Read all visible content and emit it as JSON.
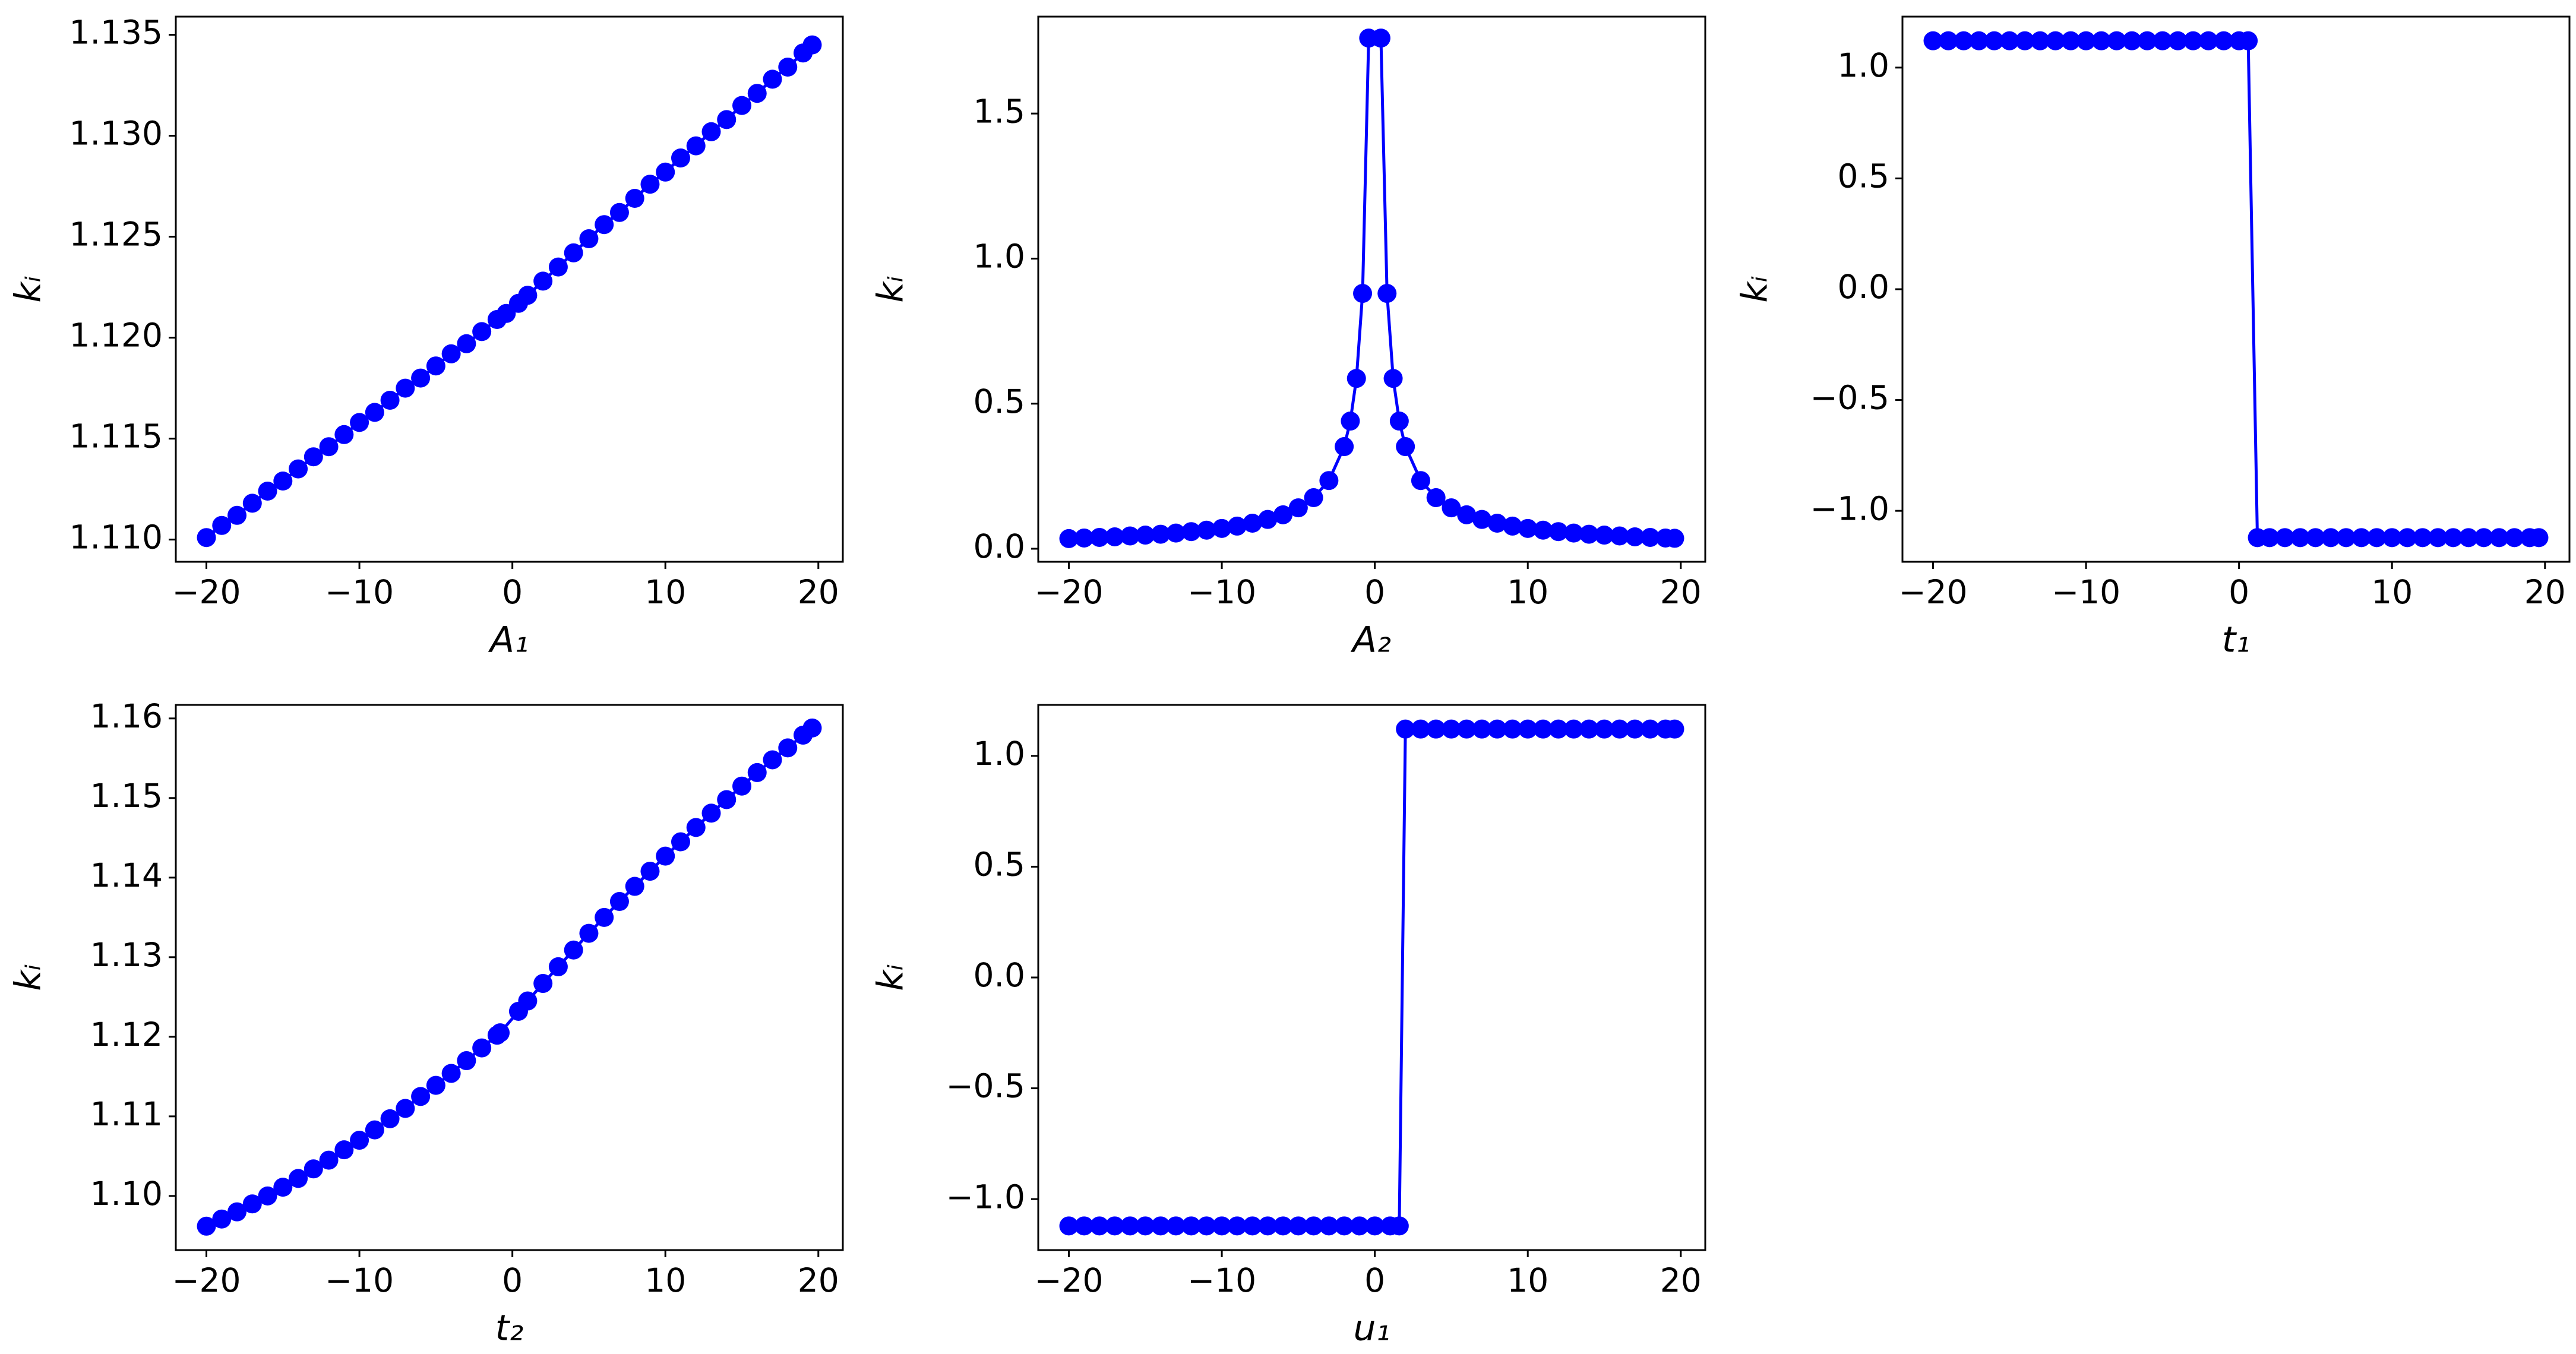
{
  "chart_data": [
    {
      "type": "line",
      "xlabel": "A₁",
      "ylabel": "kᵢ",
      "color": "#0000ff",
      "x": [
        -20,
        -19,
        -18,
        -17,
        -16,
        -15,
        -14,
        -13,
        -12,
        -11,
        -10,
        -9,
        -8,
        -7,
        -6,
        -5,
        -4,
        -3,
        -2,
        -1,
        -0.4,
        0.4,
        1,
        2,
        3,
        4,
        5,
        6,
        7,
        8,
        9,
        10,
        11,
        12,
        13,
        14,
        15,
        16,
        17,
        18,
        19,
        19.6
      ],
      "values": [
        1.1101,
        1.1107,
        1.1112,
        1.1118,
        1.1124,
        1.1129,
        1.1135,
        1.1141,
        1.1146,
        1.1152,
        1.1158,
        1.1163,
        1.1169,
        1.1175,
        1.118,
        1.1186,
        1.1192,
        1.1197,
        1.1203,
        1.1209,
        1.1212,
        1.1217,
        1.1221,
        1.1228,
        1.1235,
        1.1242,
        1.1249,
        1.1256,
        1.1262,
        1.1269,
        1.1276,
        1.1282,
        1.1289,
        1.1295,
        1.1302,
        1.1308,
        1.1315,
        1.1321,
        1.1328,
        1.1334,
        1.1341,
        1.1345
      ],
      "xlim": [
        -22,
        21.6
      ],
      "ylim": [
        1.1089,
        1.1359
      ],
      "xticks": [
        {
          "value": -20,
          "label": "−20"
        },
        {
          "value": -10,
          "label": "−10"
        },
        0,
        10,
        20
      ],
      "yticks": [
        {
          "value": 1.11,
          "label": "1.110"
        },
        1.115,
        {
          "value": 1.12,
          "label": "1.120"
        },
        1.125,
        {
          "value": 1.13,
          "label": "1.130"
        },
        1.135
      ]
    },
    {
      "type": "line",
      "xlabel": "A₂",
      "ylabel": "kᵢ",
      "color": "#0000ff",
      "x": [
        -20,
        -19,
        -18,
        -17,
        -16,
        -15,
        -14,
        -13,
        -12,
        -11,
        -10,
        -9,
        -8,
        -7,
        -6,
        -5,
        -4,
        -3,
        -2,
        -1.6,
        -1.2,
        -0.8,
        -0.4,
        0.4,
        0.8,
        1.2,
        1.6,
        2,
        3,
        4,
        5,
        6,
        7,
        8,
        9,
        10,
        11,
        12,
        13,
        14,
        15,
        16,
        17,
        18,
        19,
        19.6
      ],
      "values": [
        0.035,
        0.037,
        0.039,
        0.041,
        0.044,
        0.047,
        0.05,
        0.054,
        0.059,
        0.064,
        0.07,
        0.078,
        0.088,
        0.101,
        0.117,
        0.141,
        0.176,
        0.235,
        0.352,
        0.44,
        0.587,
        0.88,
        1.76,
        1.76,
        0.88,
        0.587,
        0.44,
        0.352,
        0.235,
        0.176,
        0.141,
        0.117,
        0.101,
        0.088,
        0.078,
        0.07,
        0.064,
        0.059,
        0.054,
        0.05,
        0.047,
        0.044,
        0.041,
        0.039,
        0.037,
        0.036
      ],
      "xlim": [
        -22,
        21.6
      ],
      "ylim": [
        -0.045,
        1.834
      ],
      "xticks": [
        {
          "value": -20,
          "label": "−20"
        },
        {
          "value": -10,
          "label": "−10"
        },
        0,
        10,
        20
      ],
      "yticks": [
        {
          "value": 0,
          "label": "0.0"
        },
        0.5,
        {
          "value": 1,
          "label": "1.0"
        },
        1.5
      ]
    },
    {
      "type": "line",
      "xlabel": "t₁",
      "ylabel": "kᵢ",
      "color": "#0000ff",
      "x": [
        -20,
        -19,
        -18,
        -17,
        -16,
        -15,
        -14,
        -13,
        -12,
        -11,
        -10,
        -9,
        -8,
        -7,
        -6,
        -5,
        -4,
        -3,
        -2,
        -1,
        0,
        0.6,
        1.2,
        2,
        3,
        4,
        5,
        6,
        7,
        8,
        9,
        10,
        11,
        12,
        13,
        14,
        15,
        16,
        17,
        18,
        19,
        19.6
      ],
      "values": [
        1.121,
        1.121,
        1.121,
        1.121,
        1.121,
        1.121,
        1.121,
        1.121,
        1.121,
        1.121,
        1.121,
        1.121,
        1.121,
        1.121,
        1.121,
        1.121,
        1.121,
        1.121,
        1.121,
        1.121,
        1.121,
        1.121,
        -1.121,
        -1.121,
        -1.121,
        -1.121,
        -1.121,
        -1.121,
        -1.121,
        -1.121,
        -1.121,
        -1.121,
        -1.121,
        -1.121,
        -1.121,
        -1.121,
        -1.121,
        -1.121,
        -1.121,
        -1.121,
        -1.121,
        -1.121
      ],
      "xlim": [
        -22,
        21.6
      ],
      "ylim": [
        -1.23,
        1.23
      ],
      "xticks": [
        {
          "value": -20,
          "label": "−20"
        },
        {
          "value": -10,
          "label": "−10"
        },
        0,
        10,
        20
      ],
      "yticks": [
        {
          "value": -1,
          "label": "−1.0"
        },
        {
          "value": -0.5,
          "label": "−0.5"
        },
        {
          "value": 0,
          "label": "0.0"
        },
        0.5,
        {
          "value": 1,
          "label": "1.0"
        }
      ]
    },
    {
      "type": "line",
      "xlabel": "t₂",
      "ylabel": "kᵢ",
      "color": "#0000ff",
      "x": [
        -20,
        -19,
        -18,
        -17,
        -16,
        -15,
        -14,
        -13,
        -12,
        -11,
        -10,
        -9,
        -8,
        -7,
        -6,
        -5,
        -4,
        -3,
        -2,
        -1,
        -0.8,
        0.4,
        1,
        2,
        3,
        4,
        5,
        6,
        7,
        8,
        9,
        10,
        11,
        12,
        13,
        14,
        15,
        16,
        17,
        18,
        19,
        19.6
      ],
      "values": [
        1.0962,
        1.0971,
        1.098,
        1.099,
        1.1,
        1.1011,
        1.1022,
        1.1034,
        1.1045,
        1.1058,
        1.107,
        1.1083,
        1.1097,
        1.111,
        1.1125,
        1.1139,
        1.1154,
        1.117,
        1.1186,
        1.1202,
        1.1205,
        1.1232,
        1.1245,
        1.1267,
        1.1288,
        1.1309,
        1.133,
        1.135,
        1.137,
        1.1389,
        1.1408,
        1.1427,
        1.1445,
        1.1463,
        1.1481,
        1.1498,
        1.1515,
        1.1532,
        1.1548,
        1.1563,
        1.1579,
        1.1588
      ],
      "xlim": [
        -22,
        21.6
      ],
      "ylim": [
        1.0932,
        1.1617
      ],
      "xticks": [
        {
          "value": -20,
          "label": "−20"
        },
        {
          "value": -10,
          "label": "−10"
        },
        0,
        10,
        20
      ],
      "yticks": [
        {
          "value": 1.1,
          "label": "1.10"
        },
        1.11,
        1.12,
        1.13,
        1.14,
        1.15,
        {
          "value": 1.16,
          "label": "1.16"
        }
      ]
    },
    {
      "type": "line",
      "xlabel": "u₁",
      "ylabel": "kᵢ",
      "color": "#0000ff",
      "x": [
        -20,
        -19,
        -18,
        -17,
        -16,
        -15,
        -14,
        -13,
        -12,
        -11,
        -10,
        -9,
        -8,
        -7,
        -6,
        -5,
        -4,
        -3,
        -2,
        -1,
        0,
        1,
        1.6,
        2,
        3,
        4,
        5,
        6,
        7,
        8,
        9,
        10,
        11,
        12,
        13,
        14,
        15,
        16,
        17,
        18,
        19,
        19.6
      ],
      "values": [
        -1.121,
        -1.121,
        -1.121,
        -1.121,
        -1.121,
        -1.121,
        -1.121,
        -1.121,
        -1.121,
        -1.121,
        -1.121,
        -1.121,
        -1.121,
        -1.121,
        -1.121,
        -1.121,
        -1.121,
        -1.121,
        -1.121,
        -1.121,
        -1.121,
        -1.121,
        -1.121,
        1.121,
        1.121,
        1.121,
        1.121,
        1.121,
        1.121,
        1.121,
        1.121,
        1.121,
        1.121,
        1.121,
        1.121,
        1.121,
        1.121,
        1.121,
        1.121,
        1.121,
        1.121,
        1.121
      ],
      "xlim": [
        -22,
        21.6
      ],
      "ylim": [
        -1.23,
        1.23
      ],
      "xticks": [
        {
          "value": -20,
          "label": "−20"
        },
        {
          "value": -10,
          "label": "−10"
        },
        0,
        10,
        20
      ],
      "yticks": [
        {
          "value": -1,
          "label": "−1.0"
        },
        {
          "value": -0.5,
          "label": "−0.5"
        },
        {
          "value": 0,
          "label": "0.0"
        },
        0.5,
        {
          "value": 1,
          "label": "1.0"
        }
      ]
    }
  ]
}
